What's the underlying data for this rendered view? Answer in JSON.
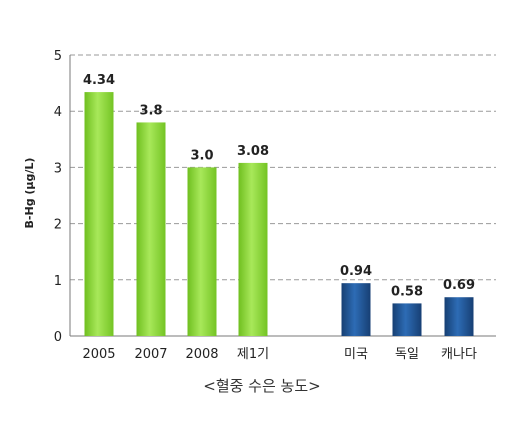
{
  "chart_data": {
    "type": "bar",
    "title": "",
    "xlabel": "",
    "ylabel": "B-Hg (μg/L)",
    "caption": "<혈중 수은 농도>",
    "ylim": [
      0,
      5
    ],
    "yticks": [
      "0",
      "1",
      "2",
      "3",
      "4",
      "5"
    ],
    "grid": "horizontal-dashed",
    "legend": "none",
    "categories": [
      "2005",
      "2007",
      "2008",
      "제1기",
      "미국",
      "독일",
      "캐나다"
    ],
    "values": [
      4.34,
      3.8,
      3.0,
      3.08,
      0.94,
      0.58,
      0.69
    ],
    "value_labels": [
      "4.34",
      "3.8",
      "3.0",
      "3.08",
      "0.94",
      "0.58",
      "0.69"
    ],
    "groups": [
      {
        "color": "#8bd334",
        "members": [
          0,
          1,
          2,
          3
        ]
      },
      {
        "color": "#1d4f8e",
        "members": [
          4,
          5,
          6
        ]
      }
    ]
  }
}
